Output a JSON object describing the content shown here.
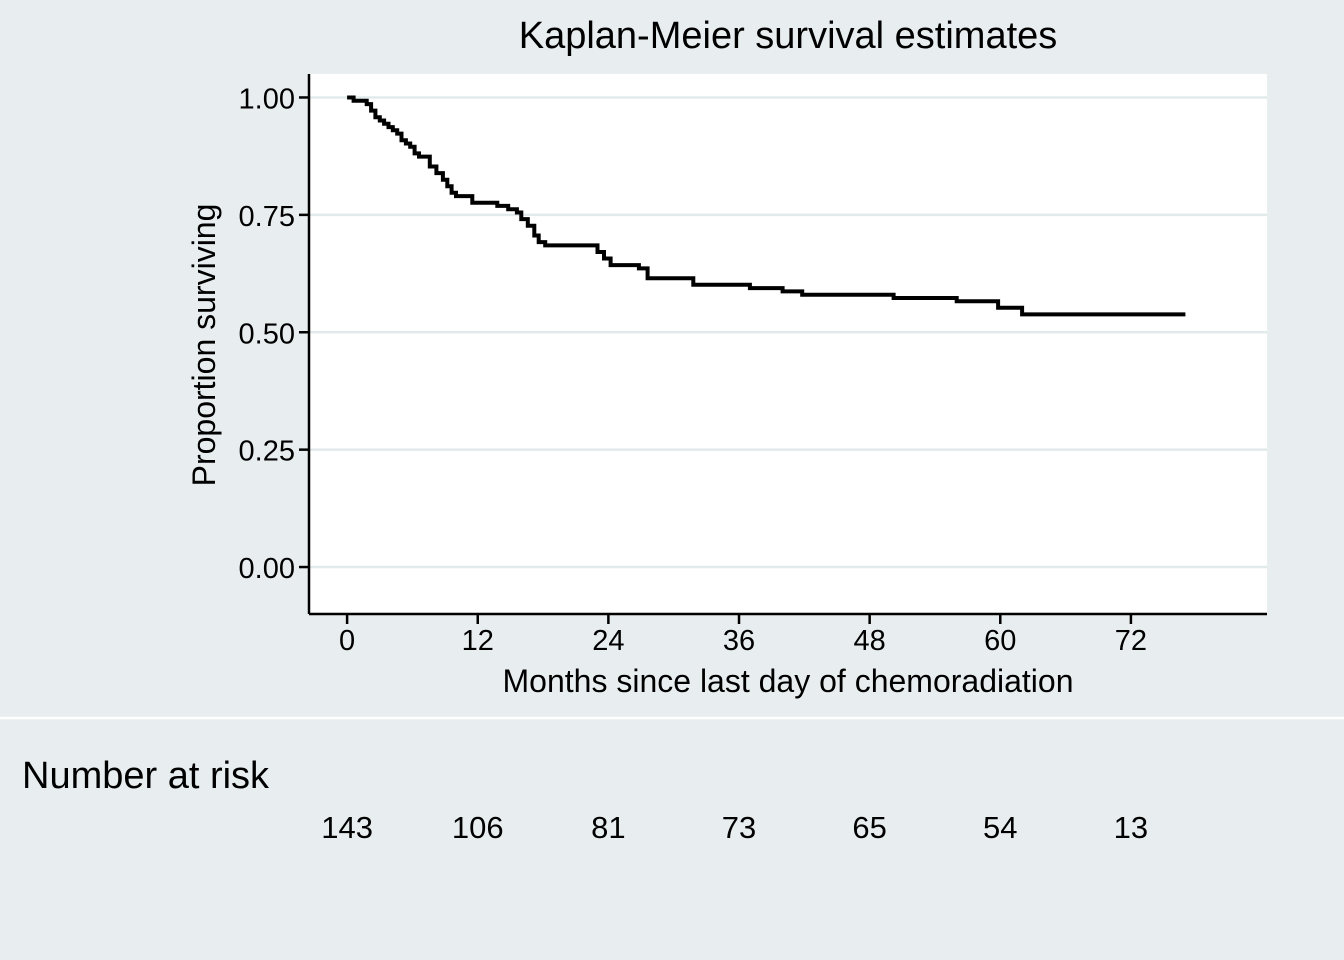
{
  "chart_data": {
    "type": "line",
    "title": "Kaplan-Meier survival estimates",
    "xlabel": "Months since last day of chemoradiation",
    "ylabel": "Proportion surviving",
    "xlim": [
      -3.5,
      84.5
    ],
    "ylim": [
      -0.1,
      1.05
    ],
    "x_ticks": [
      0,
      12,
      24,
      36,
      48,
      60,
      72
    ],
    "y_ticks": [
      0,
      0.25,
      0.5,
      0.75,
      1.0
    ],
    "x_tick_labels": [
      "0",
      "12",
      "24",
      "36",
      "48",
      "60",
      "72"
    ],
    "y_tick_labels": [
      "0.00",
      "0.25",
      "0.50",
      "0.75",
      "1.00"
    ],
    "grid": true,
    "line_color": "#000000",
    "series": [
      {
        "step": true,
        "x": [
          0,
          0.6,
          1.2,
          1.8,
          2.2,
          2.6,
          3.0,
          3.4,
          3.8,
          4.2,
          4.6,
          5.0,
          5.4,
          5.8,
          6.2,
          6.6,
          7.0,
          7.6,
          8.2,
          8.8,
          9.2,
          9.6,
          10.0,
          11.5,
          13.8,
          14.8,
          15.6,
          16.0,
          16.6,
          17.2,
          17.6,
          18.2,
          23.0,
          23.6,
          24.2,
          26.8,
          27.6,
          31.8,
          37.0,
          40.0,
          41.8,
          50.2,
          56.0,
          59.8,
          62.0,
          77.0
        ],
        "y": [
          1.0,
          0.993,
          0.993,
          0.986,
          0.972,
          0.958,
          0.951,
          0.944,
          0.937,
          0.93,
          0.923,
          0.909,
          0.902,
          0.895,
          0.881,
          0.874,
          0.874,
          0.853,
          0.839,
          0.825,
          0.811,
          0.797,
          0.79,
          0.776,
          0.769,
          0.762,
          0.755,
          0.741,
          0.727,
          0.706,
          0.692,
          0.685,
          0.671,
          0.657,
          0.643,
          0.636,
          0.615,
          0.601,
          0.594,
          0.587,
          0.58,
          0.573,
          0.566,
          0.552,
          0.538,
          0.538
        ]
      }
    ]
  },
  "risk_table": {
    "title": "Number at risk",
    "times": [
      0,
      12,
      24,
      36,
      48,
      60,
      72
    ],
    "counts": [
      "143",
      "106",
      "81",
      "73",
      "65",
      "54",
      "13"
    ]
  }
}
